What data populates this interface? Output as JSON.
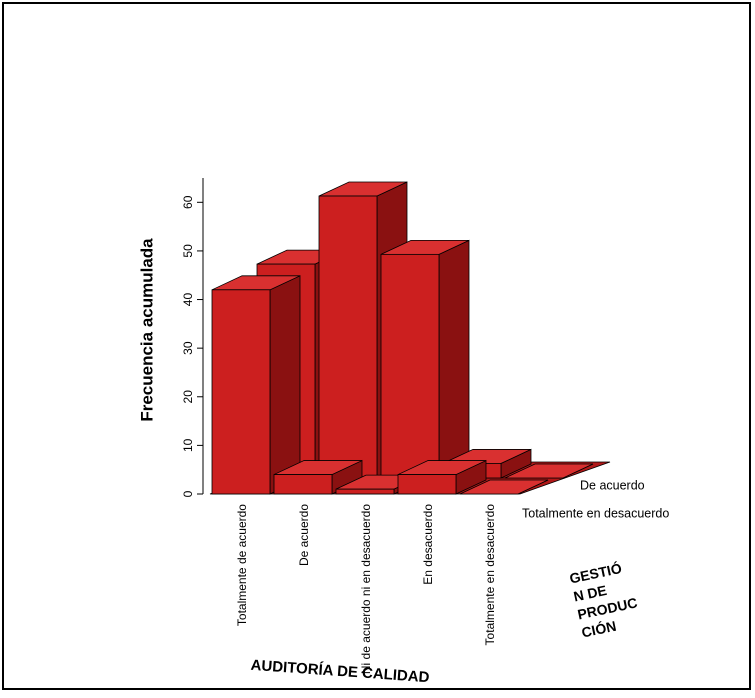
{
  "chart_data": {
    "type": "bar3d",
    "y_label": "Frecuencia acumulada",
    "x_label": "AUDITORÍA DE CALIDAD",
    "z_label": [
      "GESTIÓ",
      "N DE",
      "PRODUC",
      "CIÓN"
    ],
    "categories": [
      "Totalmente de acuerdo",
      "De acuerdo",
      "Ni de acuerdo ni en desacuerdo",
      "En desacuerdo",
      "Totalmente en desacuerdo"
    ],
    "series": [
      {
        "name": "Totalmente en desacuerdo",
        "color": "#cc1f1f",
        "values": [
          42,
          4,
          1,
          4,
          0
        ]
      },
      {
        "name": "De acuerdo",
        "color": "#cc1f1f",
        "values": [
          44,
          58,
          46,
          3,
          0
        ]
      }
    ],
    "ylim": [
      0,
      65
    ],
    "yticks": [
      0,
      10,
      20,
      30,
      40,
      50,
      60
    ]
  }
}
